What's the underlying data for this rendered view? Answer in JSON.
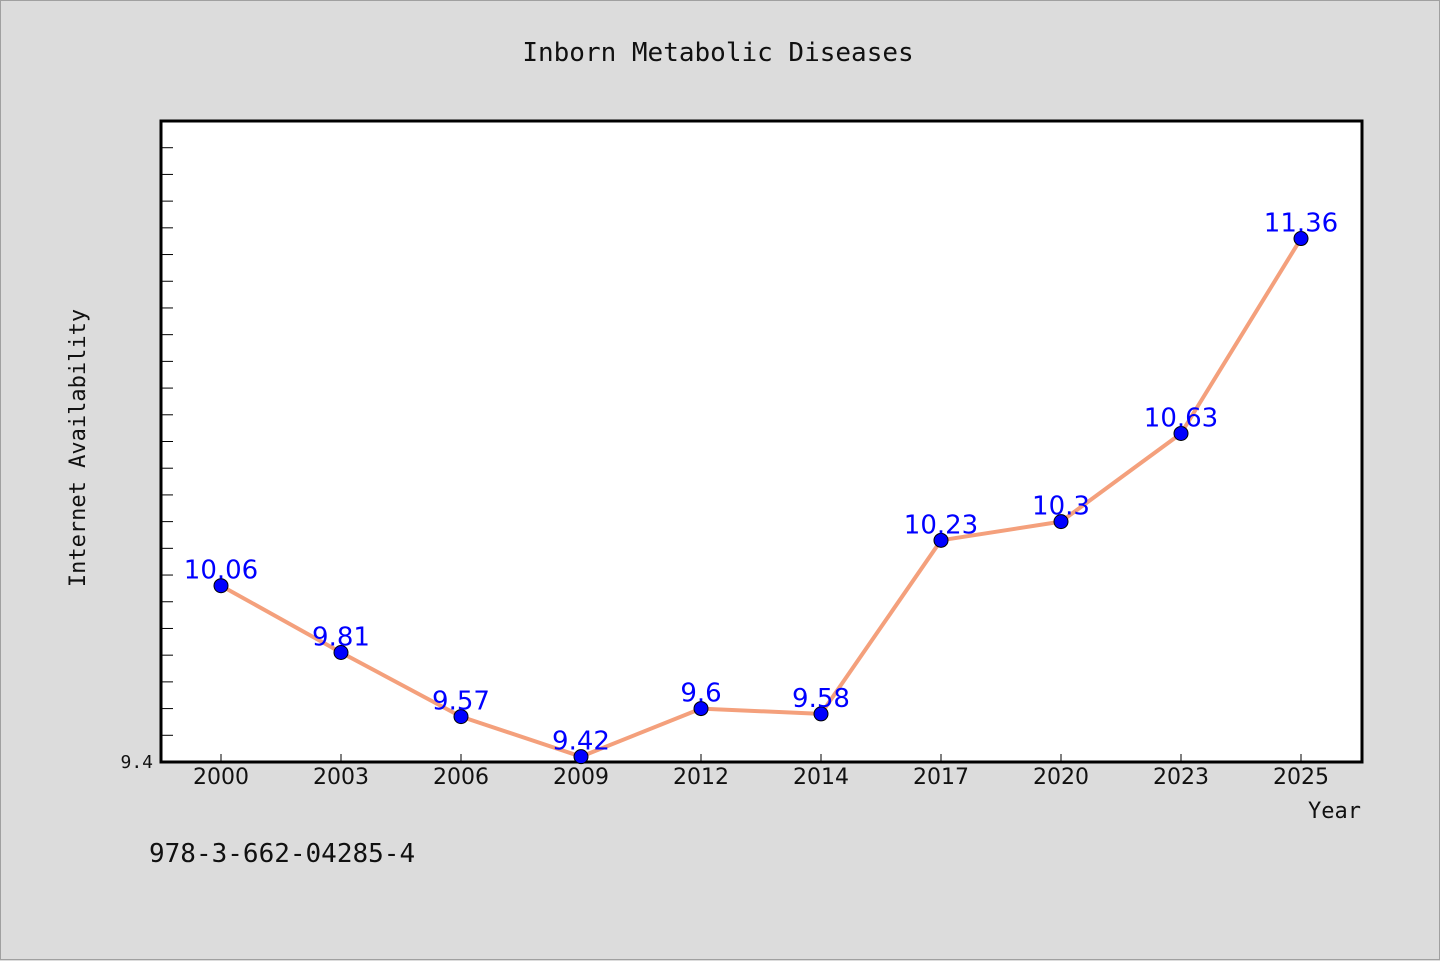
{
  "chart_data": {
    "type": "line",
    "title": "Inborn Metabolic Diseases",
    "xlabel": "Year",
    "ylabel": "Internet Availability",
    "categories": [
      "2000",
      "2003",
      "2006",
      "2009",
      "2012",
      "2014",
      "2017",
      "2020",
      "2023",
      "2025"
    ],
    "series": [
      {
        "values": [
          10.06,
          9.81,
          9.57,
          9.42,
          9.6,
          9.58,
          10.23,
          10.3,
          10.63,
          11.36
        ]
      }
    ],
    "data_labels": [
      "10.06",
      "9.81",
      "9.57",
      "9.42",
      "9.6",
      "9.58",
      "10.23",
      "10.3",
      "10.63",
      "11.36"
    ],
    "y_tick_label": "9.4",
    "ylim": [
      9.4,
      11.8
    ],
    "y_minor_tick_step": 0.1,
    "grid": false,
    "line_color": "#f4a07c",
    "marker_color": "#0000ff",
    "label_color": "#0000ff",
    "background_color": "#dcdcdc",
    "plot_background_color": "#ffffff"
  },
  "footer": {
    "isbn": "978-3-662-04285-4"
  }
}
